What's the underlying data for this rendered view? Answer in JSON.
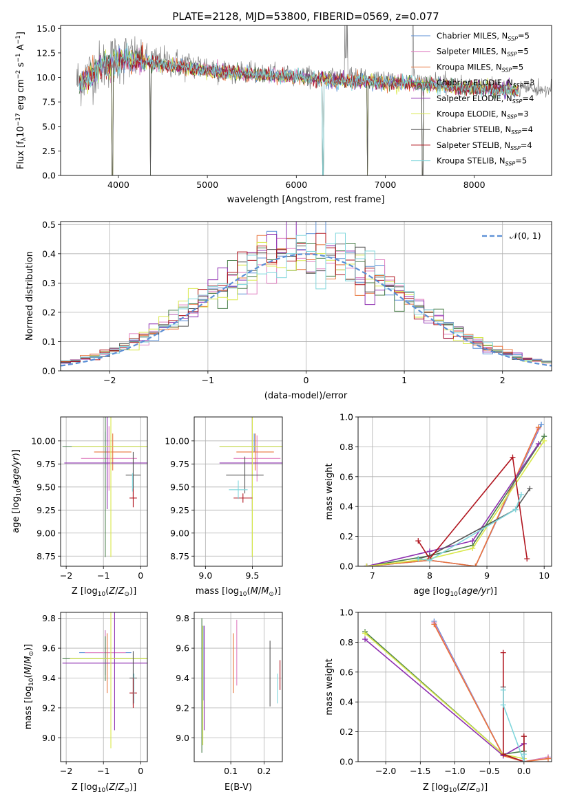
{
  "figure": {
    "title": "PLATE=2128, MJD=53800, FIBERID=0569, z=0.077"
  },
  "colors": {
    "Chabrier MILES": "#5b8fd6",
    "Salpeter MILES": "#e07fc0",
    "Kroupa MILES": "#e8743b",
    "Chabrier ELODIE": "#4a7f4a",
    "Salpeter ELODIE": "#8e2fb0",
    "Kroupa ELODIE": "#d9e84a",
    "Chabrier STELIB": "#555555",
    "Salpeter STELIB": "#b0141e",
    "Kroupa STELIB": "#7fd6dc",
    "data": "#808080",
    "normal": "#5b8fd6"
  },
  "chart_data": [
    {
      "type": "line",
      "title": "PLATE=2128, MJD=53800, FIBERID=0569, z=0.077",
      "xlabel": "wavelength [Angstrom, rest frame]",
      "ylabel": "Flux [f_λ 10^-17 erg cm^-2 s^-1 A^-1]",
      "xlim": [
        3350,
        8870
      ],
      "ylim": [
        0,
        15.3
      ],
      "xticks": [
        4000,
        5000,
        6000,
        7000,
        8000
      ],
      "yticks": [
        0.0,
        2.5,
        5.0,
        7.5,
        10.0,
        12.5,
        15.0
      ],
      "legend": [
        {
          "base": "Chabrier MILES, N",
          "sub": "SSP",
          "tail": "=5"
        },
        {
          "base": "Salpeter MILES, N",
          "sub": "SSP",
          "tail": "=5"
        },
        {
          "base": "Kroupa MILES, N",
          "sub": "SSP",
          "tail": "=5"
        },
        {
          "base": "Chabrier ELODIE, N",
          "sub": "SSP",
          "tail": "=3"
        },
        {
          "base": "Salpeter ELODIE, N",
          "sub": "SSP",
          "tail": "=4"
        },
        {
          "base": "Kroupa ELODIE, N",
          "sub": "SSP",
          "tail": "=3"
        },
        {
          "base": "Chabrier STELIB, N",
          "sub": "SSP",
          "tail": "=4"
        },
        {
          "base": "Salpeter STELIB, N",
          "sub": "SSP",
          "tail": "=4"
        },
        {
          "base": "Kroupa STELIB, N",
          "sub": "SSP",
          "tail": "=5"
        }
      ],
      "legend_placement": "top-right",
      "continuum": {
        "x": [
          3550,
          3800,
          4000,
          4200,
          4500,
          5000,
          5500,
          6000,
          6500,
          7000,
          7400,
          7800,
          8300,
          8800
        ],
        "y": [
          9.6,
          11.2,
          12.0,
          12.0,
          11.6,
          11.0,
          10.6,
          10.3,
          10.0,
          9.8,
          9.6,
          9.3,
          9.0,
          8.7
        ]
      },
      "dips": [
        {
          "x": 3933,
          "y": 0.0
        },
        {
          "x": 4360,
          "y": 0.0
        },
        {
          "x": 6300,
          "y": 0.0
        },
        {
          "x": 6800,
          "y": 0.0
        },
        {
          "x": 7420,
          "y": 0.0
        }
      ]
    },
    {
      "type": "histogram",
      "xlabel": "(data-model)/error",
      "ylabel": "Normed distribution",
      "xlim": [
        -2.5,
        2.5
      ],
      "ylim": [
        0,
        0.51
      ],
      "xticks": [
        -2,
        -1,
        0,
        1,
        2
      ],
      "yticks": [
        0.0,
        0.1,
        0.2,
        0.3,
        0.4,
        0.5
      ],
      "legend_label": "N(0,1)",
      "bin_width": 0.1
    },
    {
      "type": "errorbar",
      "xlabel": "Z [log10(Z/Z⊙)]",
      "ylabel": "age [log10(age/yr)]",
      "xlim": [
        -2.15,
        0.18
      ],
      "ylim": [
        8.64,
        10.26
      ],
      "xticks": [
        -2,
        -1,
        0
      ],
      "yticks": [
        8.75,
        9.0,
        9.25,
        9.5,
        9.75,
        10.0
      ],
      "points": [
        {
          "series": "Chabrier MILES",
          "x": -0.95,
          "xerr": 0.0,
          "y": 9.9,
          "yerr": 0.2
        },
        {
          "series": "Salpeter MILES",
          "x": -0.85,
          "xerr": 0.75,
          "y": 9.81,
          "yerr": 0.35
        },
        {
          "series": "Kroupa MILES",
          "x": -0.75,
          "xerr": 0.5,
          "y": 9.88,
          "yerr": 0.2
        },
        {
          "series": "Chabrier ELODIE",
          "x": -0.95,
          "xerr": 1.15,
          "y": 9.94,
          "yerr": 1.2
        },
        {
          "series": "Salpeter ELODIE",
          "x": -0.9,
          "xerr": 1.15,
          "y": 9.76,
          "yerr": 0.5
        },
        {
          "series": "Kroupa ELODIE",
          "x": -0.8,
          "xerr": 1.05,
          "y": 9.94,
          "yerr": 1.2
        },
        {
          "series": "Chabrier STELIB",
          "x": -0.2,
          "xerr": 0.2,
          "y": 9.63,
          "yerr": 0.25
        },
        {
          "series": "Salpeter STELIB",
          "x": -0.2,
          "xerr": 0.1,
          "y": 9.38,
          "yerr": 0.1
        },
        {
          "series": "Kroupa STELIB",
          "x": -0.22,
          "xerr": 0.0,
          "y": 9.55,
          "yerr": 0.1
        }
      ]
    },
    {
      "type": "errorbar",
      "xlabel": "mass [log10(M/M⊙)]",
      "ylabel": "",
      "xlim": [
        8.88,
        9.82
      ],
      "ylim": [
        8.64,
        10.26
      ],
      "xticks": [
        9.0,
        9.5
      ],
      "yticks": [
        8.75,
        9.0,
        9.25,
        9.5,
        9.75,
        10.0
      ],
      "points": [
        {
          "series": "Chabrier MILES",
          "x": 9.52,
          "xerr": 0.0,
          "y": 9.98,
          "yerr": 0.1
        },
        {
          "series": "Salpeter MILES",
          "x": 9.55,
          "xerr": 0.25,
          "y": 9.81,
          "yerr": 0.25
        },
        {
          "series": "Kroupa MILES",
          "x": 9.53,
          "xerr": 0.2,
          "y": 9.88,
          "yerr": 0.2
        },
        {
          "series": "Chabrier ELODIE",
          "x": 9.5,
          "xerr": 0.35,
          "y": 9.94,
          "yerr": 1.2
        },
        {
          "series": "Salpeter ELODIE",
          "x": 9.5,
          "xerr": 0.35,
          "y": 9.76,
          "yerr": 0.5
        },
        {
          "series": "Kroupa ELODIE",
          "x": 9.5,
          "xerr": 0.35,
          "y": 9.94,
          "yerr": 1.2
        },
        {
          "series": "Chabrier STELIB",
          "x": 9.42,
          "xerr": 0.2,
          "y": 9.63,
          "yerr": 0.2
        },
        {
          "series": "Salpeter STELIB",
          "x": 9.4,
          "xerr": 0.1,
          "y": 9.38,
          "yerr": 0.05
        },
        {
          "series": "Kroupa STELIB",
          "x": 9.35,
          "xerr": 0.1,
          "y": 9.47,
          "yerr": 0.1
        }
      ]
    },
    {
      "type": "line",
      "xlabel": "age [log10(age/yr)]",
      "ylabel": "mass weight",
      "xlim": [
        6.75,
        10.13
      ],
      "ylim": [
        0,
        1.0
      ],
      "xticks": [
        7,
        8,
        9,
        10
      ],
      "yticks": [
        0.0,
        0.2,
        0.4,
        0.6,
        0.8,
        1.0
      ],
      "series": [
        {
          "name": "Chabrier MILES",
          "x": [
            6.9,
            8.0,
            8.8,
            9.95
          ],
          "y": [
            0.0,
            0.04,
            0.0,
            0.95
          ]
        },
        {
          "name": "Salpeter MILES",
          "x": [
            6.9,
            8.0,
            8.8,
            9.9
          ],
          "y": [
            0.0,
            0.04,
            0.0,
            0.92
          ]
        },
        {
          "name": "Kroupa MILES",
          "x": [
            6.9,
            8.0,
            8.8,
            9.9
          ],
          "y": [
            0.0,
            0.04,
            0.0,
            0.93
          ]
        },
        {
          "name": "Chabrier ELODIE",
          "x": [
            6.9,
            8.0,
            8.75,
            10.0
          ],
          "y": [
            0.0,
            0.07,
            0.14,
            0.87
          ]
        },
        {
          "name": "Salpeter ELODIE",
          "x": [
            6.9,
            8.0,
            8.75,
            9.9
          ],
          "y": [
            0.0,
            0.1,
            0.17,
            0.82
          ]
        },
        {
          "name": "Kroupa ELODIE",
          "x": [
            6.9,
            8.0,
            8.75,
            10.0
          ],
          "y": [
            0.0,
            0.05,
            0.12,
            0.84
          ]
        },
        {
          "name": "Chabrier STELIB",
          "x": [
            7.8,
            8.0,
            9.5,
            9.75
          ],
          "y": [
            0.05,
            0.07,
            0.38,
            0.52
          ]
        },
        {
          "name": "Salpeter STELIB",
          "x": [
            7.8,
            8.0,
            9.45,
            9.7
          ],
          "y": [
            0.17,
            0.05,
            0.73,
            0.05
          ]
        },
        {
          "name": "Kroupa STELIB",
          "x": [
            7.8,
            8.0,
            9.5,
            9.6
          ],
          "y": [
            0.05,
            0.04,
            0.38,
            0.48
          ]
        }
      ]
    },
    {
      "type": "errorbar",
      "xlabel": "Z [log10(Z/Z⊙)]",
      "ylabel": "mass [log10(M/M⊙)]",
      "xlim": [
        -2.15,
        0.18
      ],
      "ylim": [
        8.84,
        9.84
      ],
      "xticks": [
        -2,
        -1,
        0
      ],
      "yticks": [
        9.0,
        9.2,
        9.4,
        9.6,
        9.8
      ],
      "points": [
        {
          "series": "Chabrier MILES",
          "x": -0.95,
          "xerr": 0.7,
          "y": 9.57,
          "yerr": 0.15
        },
        {
          "series": "Salpeter MILES",
          "x": -0.95,
          "xerr": 0.55,
          "y": 9.57,
          "yerr": 0.15
        },
        {
          "series": "Kroupa MILES",
          "x": -0.9,
          "xerr": 0.0,
          "y": 9.5,
          "yerr": 0.2
        },
        {
          "series": "Chabrier ELODIE",
          "x": -0.95,
          "xerr": 1.15,
          "y": 9.53,
          "yerr": 0.15
        },
        {
          "series": "Salpeter ELODIE",
          "x": -0.7,
          "xerr": 1.4,
          "y": 9.5,
          "yerr": 0.45
        },
        {
          "series": "Kroupa ELODIE",
          "x": -0.8,
          "xerr": 1.1,
          "y": 9.53,
          "yerr": 0.6
        },
        {
          "series": "Chabrier STELIB",
          "x": -0.2,
          "xerr": 0.1,
          "y": 9.4,
          "yerr": 0.18
        },
        {
          "series": "Salpeter STELIB",
          "x": -0.2,
          "xerr": 0.1,
          "y": 9.3,
          "yerr": 0.1
        },
        {
          "series": "Kroupa STELIB",
          "x": -0.18,
          "xerr": 0.0,
          "y": 9.33,
          "yerr": 0.1
        }
      ]
    },
    {
      "type": "errorbar",
      "xlabel": "E(B-V)",
      "ylabel": "",
      "xlim": [
        -0.01,
        0.255
      ],
      "ylim": [
        8.84,
        9.84
      ],
      "xticks": [
        0.1,
        0.2
      ],
      "yticks": [
        9.0,
        9.2,
        9.4,
        9.6,
        9.8
      ],
      "points": [
        {
          "series": "Chabrier MILES",
          "x": 0.017,
          "y": 9.5,
          "yerr": 0.25
        },
        {
          "series": "Salpeter MILES",
          "x": 0.118,
          "y": 9.57,
          "yerr": 0.22
        },
        {
          "series": "Kroupa MILES",
          "x": 0.108,
          "y": 9.5,
          "yerr": 0.2
        },
        {
          "series": "Chabrier ELODIE",
          "x": 0.013,
          "y": 9.35,
          "yerr": 0.45
        },
        {
          "series": "Salpeter ELODIE",
          "x": 0.02,
          "y": 9.4,
          "yerr": 0.35
        },
        {
          "series": "Kroupa ELODIE",
          "x": 0.016,
          "y": 9.35,
          "yerr": 0.4
        },
        {
          "series": "Chabrier STELIB",
          "x": 0.218,
          "y": 9.43,
          "yerr": 0.22
        },
        {
          "series": "Salpeter STELIB",
          "x": 0.248,
          "y": 9.42,
          "yerr": 0.1
        },
        {
          "series": "Kroupa STELIB",
          "x": 0.24,
          "y": 9.33,
          "yerr": 0.1
        }
      ]
    },
    {
      "type": "line",
      "xlabel": "Z [log10(Z/Z⊙)]",
      "ylabel": "mass weight",
      "xlim": [
        -2.4,
        0.4
      ],
      "ylim": [
        0,
        1.0
      ],
      "xticks": [
        -2.0,
        -1.5,
        -1.0,
        -0.5,
        0.0
      ],
      "yticks": [
        0.0,
        0.2,
        0.4,
        0.6,
        0.8,
        1.0
      ],
      "series": [
        {
          "name": "Chabrier MILES",
          "x": [
            -1.3,
            -0.3,
            0.0,
            0.35
          ],
          "y": [
            0.94,
            0.04,
            0.0,
            0.03
          ]
        },
        {
          "name": "Salpeter MILES",
          "x": [
            -1.3,
            -0.3,
            0.0,
            0.35
          ],
          "y": [
            0.93,
            0.04,
            0.0,
            0.03
          ]
        },
        {
          "name": "Kroupa MILES",
          "x": [
            -1.3,
            -0.3,
            0.0,
            0.35
          ],
          "y": [
            0.92,
            0.04,
            0.0,
            0.02
          ]
        },
        {
          "name": "Chabrier ELODIE",
          "x": [
            -2.3,
            -0.3,
            0.0
          ],
          "y": [
            0.87,
            0.05,
            0.07
          ]
        },
        {
          "name": "Salpeter ELODIE",
          "x": [
            -2.3,
            -0.3,
            0.0
          ],
          "y": [
            0.82,
            0.04,
            0.12
          ]
        },
        {
          "name": "Kroupa ELODIE",
          "x": [
            -2.3,
            -0.3,
            0.0
          ],
          "y": [
            0.86,
            0.05,
            0.02
          ]
        },
        {
          "name": "Chabrier STELIB",
          "x": [
            -0.3,
            -0.3,
            0.0,
            0.0
          ],
          "y": [
            0.5,
            0.05,
            0.0,
            0.17
          ]
        },
        {
          "name": "Salpeter STELIB",
          "x": [
            -0.3,
            -0.3,
            0.0,
            0.0
          ],
          "y": [
            0.73,
            0.05,
            0.0,
            0.17
          ]
        },
        {
          "name": "Kroupa STELIB",
          "x": [
            -0.3,
            -0.3,
            0.0,
            0.0
          ],
          "y": [
            0.48,
            0.38,
            0.0,
            0.05
          ]
        }
      ]
    }
  ]
}
